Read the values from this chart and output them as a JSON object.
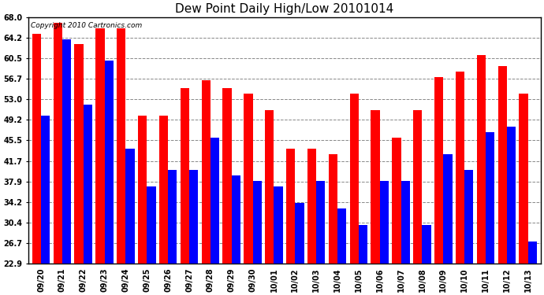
{
  "title": "Dew Point Daily High/Low 20101014",
  "copyright_text": "Copyright 2010 Cartronics.com",
  "dates": [
    "09/20",
    "09/21",
    "09/22",
    "09/23",
    "09/24",
    "09/25",
    "09/26",
    "09/27",
    "09/28",
    "09/29",
    "09/30",
    "10/01",
    "10/02",
    "10/03",
    "10/04",
    "10/05",
    "10/06",
    "10/07",
    "10/08",
    "10/09",
    "10/10",
    "10/11",
    "10/12",
    "10/13"
  ],
  "highs": [
    65.0,
    67.0,
    63.0,
    66.0,
    66.0,
    50.0,
    50.0,
    55.0,
    56.5,
    55.0,
    54.0,
    51.0,
    44.0,
    44.0,
    43.0,
    54.0,
    51.0,
    46.0,
    51.0,
    57.0,
    58.0,
    61.0,
    59.0,
    54.0
  ],
  "lows": [
    50.0,
    64.0,
    52.0,
    60.0,
    44.0,
    37.0,
    40.0,
    40.0,
    46.0,
    39.0,
    38.0,
    37.0,
    34.0,
    38.0,
    33.0,
    30.0,
    38.0,
    38.0,
    30.0,
    43.0,
    40.0,
    47.0,
    48.0,
    27.0
  ],
  "high_color": "#ff0000",
  "low_color": "#0000ff",
  "bg_color": "#ffffff",
  "plot_bg_color": "#ffffff",
  "grid_color": "#888888",
  "yticks": [
    22.9,
    26.7,
    30.4,
    34.2,
    37.9,
    41.7,
    45.5,
    49.2,
    53.0,
    56.7,
    60.5,
    64.2,
    68.0
  ],
  "ymin": 22.9,
  "ymax": 68.0,
  "title_fontsize": 11,
  "tick_fontsize": 7,
  "copyright_fontsize": 6.5
}
